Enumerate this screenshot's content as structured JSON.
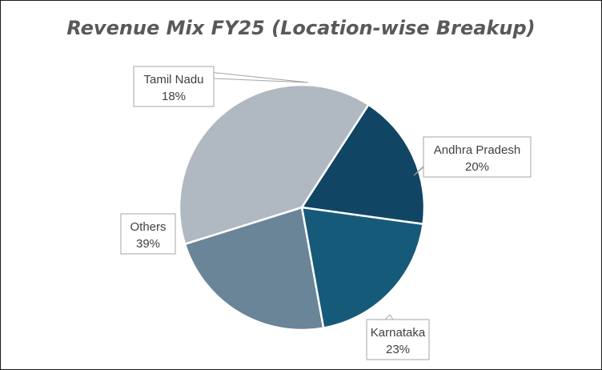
{
  "chart_data": {
    "type": "pie",
    "title": "Revenue Mix FY25 (Location-wise Breakup)",
    "slices": [
      {
        "label": "Tamil Nadu",
        "value": 18,
        "value_label": "18%",
        "color": "#104564"
      },
      {
        "label": "Andhra Pradesh",
        "value": 20,
        "value_label": "20%",
        "color": "#165a7a"
      },
      {
        "label": "Karnataka",
        "value": 23,
        "value_label": "23%",
        "color": "#6a8498"
      },
      {
        "label": "Others",
        "value": 39,
        "value_label": "39%",
        "color": "#b0b8c2"
      }
    ],
    "legend": "none",
    "data_labels": "callouts"
  }
}
